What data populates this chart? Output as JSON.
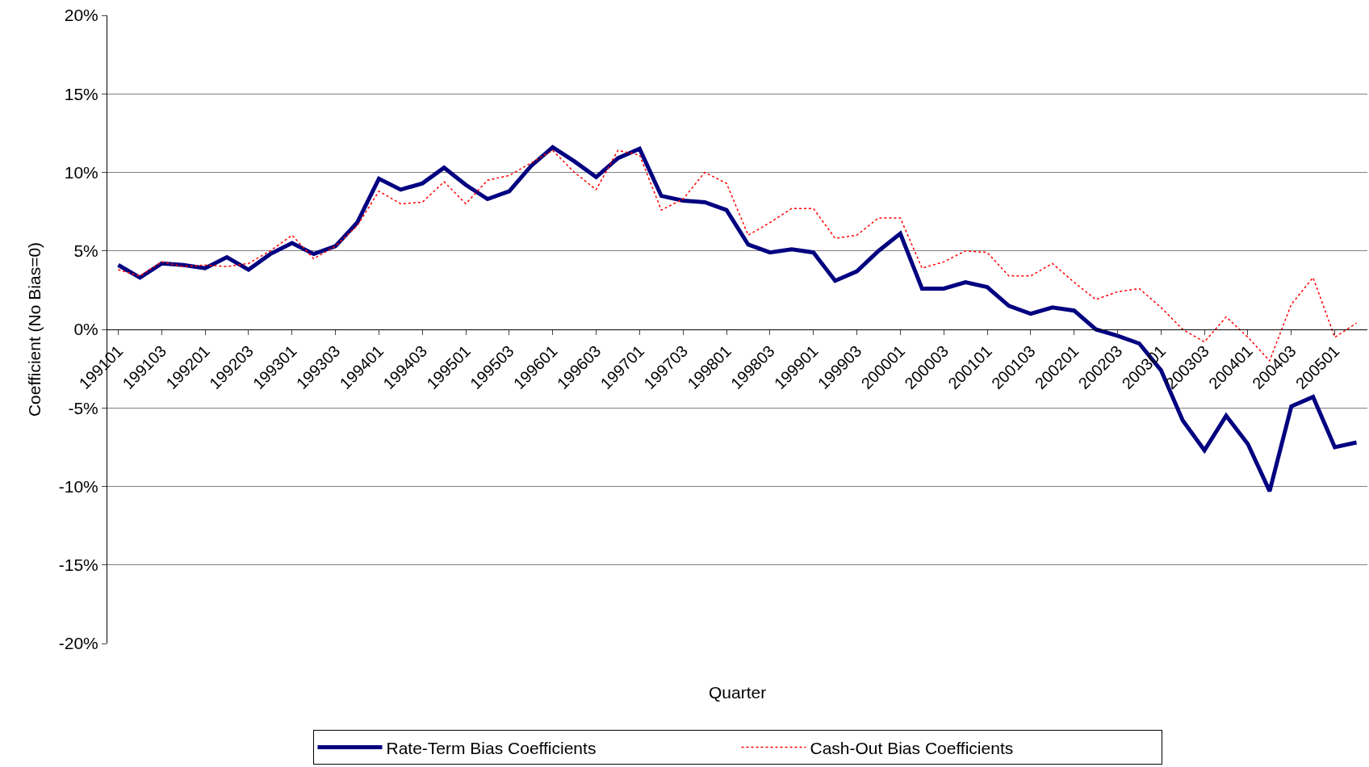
{
  "chart_data": {
    "type": "line",
    "xlabel": "Quarter",
    "ylabel": "Coefficient (No Bias=0)",
    "categories": [
      "199101",
      null,
      "199103",
      null,
      "199201",
      null,
      "199203",
      null,
      "199301",
      null,
      "199303",
      null,
      "199401",
      null,
      "199403",
      null,
      "199501",
      null,
      "199503",
      null,
      "199601",
      null,
      "199603",
      null,
      "199701",
      null,
      "199703",
      null,
      "199801",
      null,
      "199803",
      null,
      "199901",
      null,
      "199903",
      null,
      "200001",
      null,
      "200003",
      null,
      "200101",
      null,
      "200103",
      null,
      "200201",
      null,
      "200203",
      null,
      "200301",
      null,
      "200303",
      null,
      "200401",
      null,
      "200403",
      null,
      "200501",
      null
    ],
    "series": [
      {
        "name": "Rate-Term Bias Coefficients",
        "color": "#000080",
        "line_style": "solid",
        "values": [
          4.1,
          3.3,
          4.2,
          4.1,
          3.9,
          4.6,
          3.8,
          4.8,
          5.5,
          4.8,
          5.3,
          6.8,
          9.6,
          8.9,
          9.3,
          10.3,
          9.2,
          8.3,
          8.8,
          10.4,
          11.6,
          10.7,
          9.7,
          10.9,
          11.5,
          8.5,
          8.2,
          8.1,
          7.6,
          5.4,
          4.9,
          5.1,
          4.9,
          3.1,
          3.7,
          5.0,
          6.1,
          2.6,
          2.6,
          3.0,
          2.7,
          1.5,
          1.0,
          1.4,
          1.2,
          0.0,
          -0.4,
          -0.9,
          -2.6,
          -5.8,
          -7.7,
          -5.5,
          -7.3,
          -10.3,
          -4.9,
          -4.3,
          -7.5,
          -7.2
        ]
      },
      {
        "name": "Cash-Out Bias Coefficients",
        "color": "#ff0000",
        "line_style": "dashed",
        "values": [
          3.8,
          3.4,
          4.3,
          4.0,
          4.1,
          4.0,
          4.2,
          5.0,
          6.0,
          4.5,
          5.3,
          6.6,
          8.8,
          8.0,
          8.1,
          9.4,
          8.0,
          9.5,
          9.8,
          10.6,
          11.4,
          10.0,
          8.9,
          11.4,
          11.1,
          7.6,
          8.3,
          10.0,
          9.3,
          6.0,
          6.8,
          7.7,
          7.7,
          5.8,
          6.0,
          7.1,
          7.1,
          3.9,
          4.3,
          5.0,
          4.9,
          3.4,
          3.4,
          4.2,
          3.0,
          1.9,
          2.4,
          2.6,
          1.4,
          0.0,
          -0.8,
          0.8,
          -0.5,
          -2.0,
          1.6,
          3.3,
          -0.5,
          0.4
        ]
      }
    ],
    "ylim": [
      -20,
      20
    ],
    "yticks": [
      {
        "value": -20,
        "label": "-20%"
      },
      {
        "value": -15,
        "label": "-15%"
      },
      {
        "value": -10,
        "label": "-10%"
      },
      {
        "value": -5,
        "label": "-5%"
      },
      {
        "value": 0,
        "label": "0%"
      },
      {
        "value": 5,
        "label": "5%"
      },
      {
        "value": 10,
        "label": "10%"
      },
      {
        "value": 15,
        "label": "15%"
      },
      {
        "value": 20,
        "label": "20%"
      }
    ],
    "grid": "y",
    "legend": "bottom"
  }
}
